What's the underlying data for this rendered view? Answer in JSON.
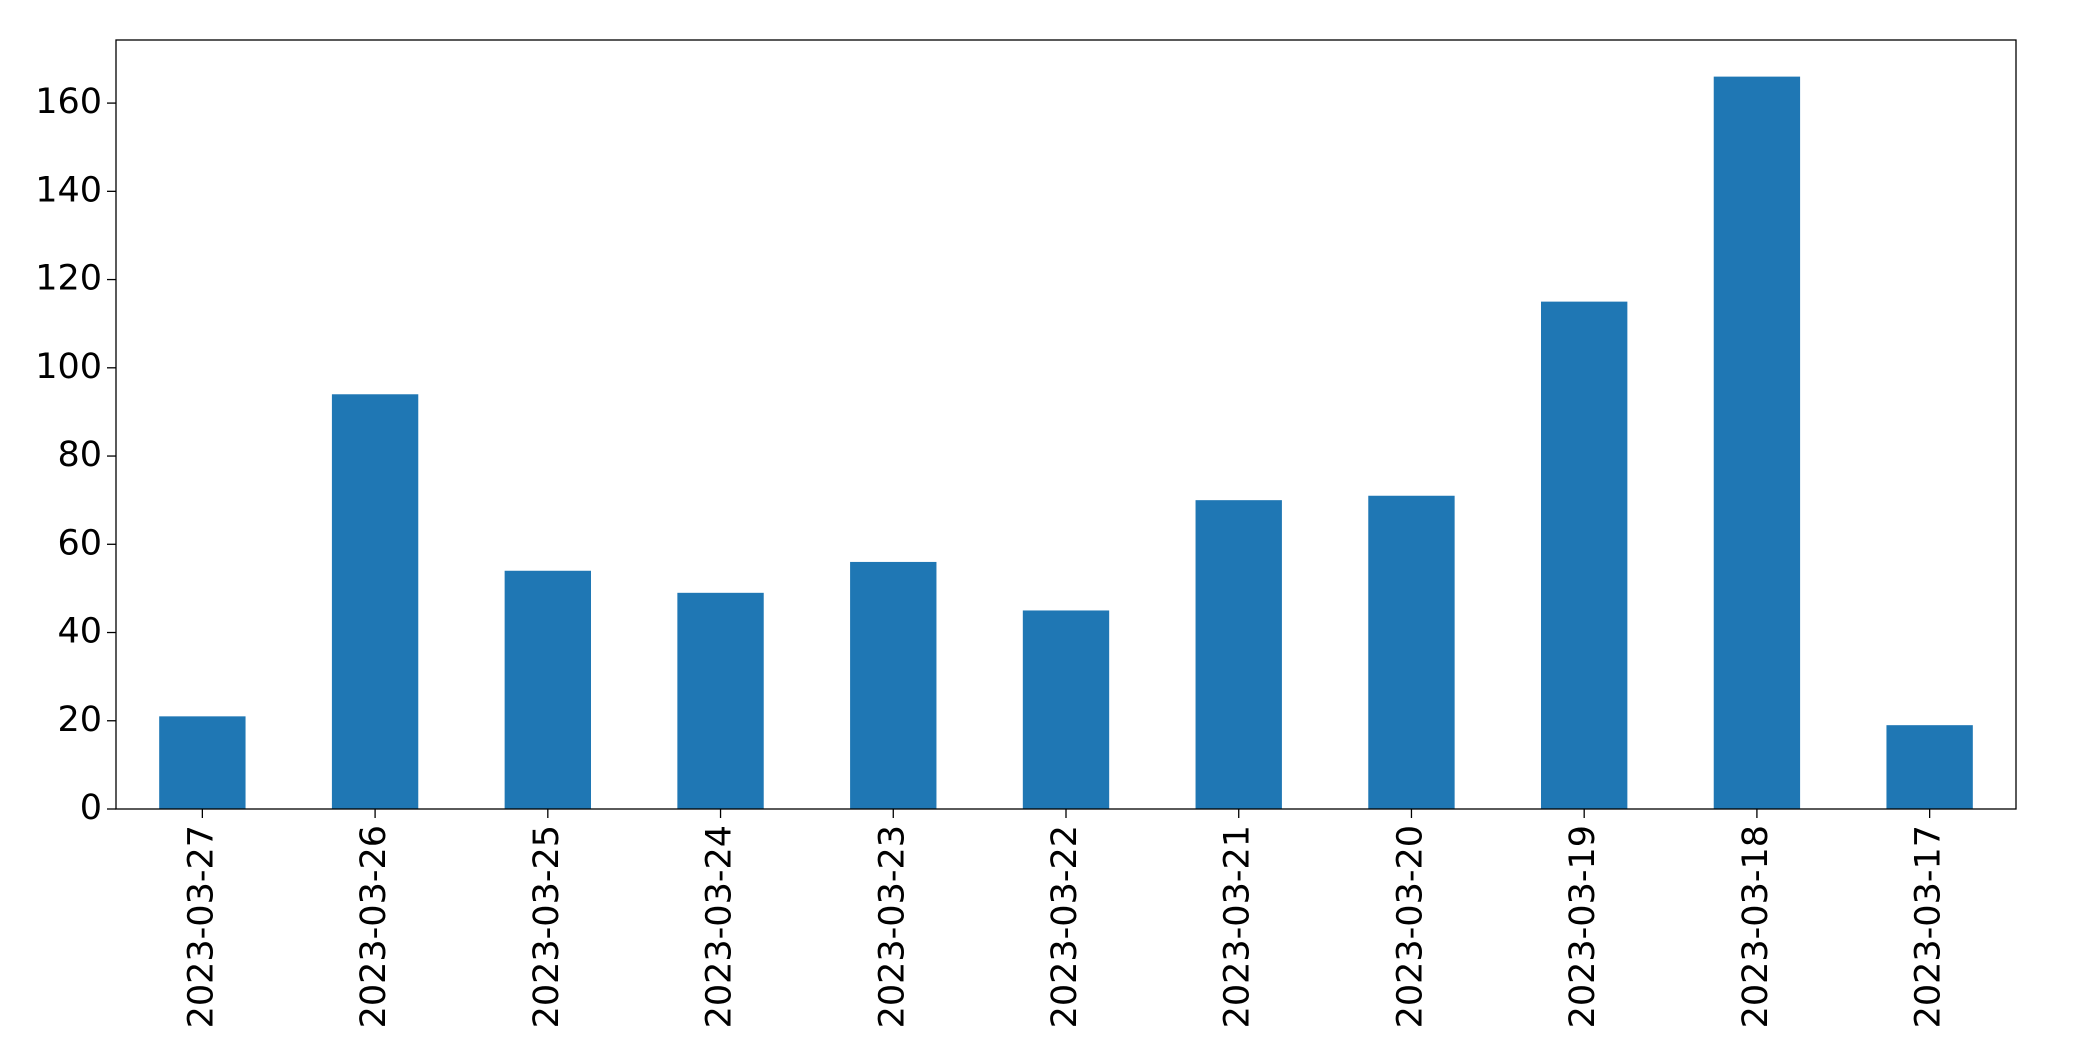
{
  "chart_data": {
    "type": "bar",
    "categories": [
      "2023-03-27",
      "2023-03-26",
      "2023-03-25",
      "2023-03-24",
      "2023-03-23",
      "2023-03-22",
      "2023-03-21",
      "2023-03-20",
      "2023-03-19",
      "2023-03-18",
      "2023-03-17"
    ],
    "values": [
      21,
      94,
      54,
      49,
      56,
      45,
      70,
      71,
      115,
      166,
      19
    ],
    "color": "#1f77b4",
    "ylim": [
      0,
      174.3
    ],
    "yticks": [
      0,
      20,
      40,
      60,
      80,
      100,
      120,
      140,
      160
    ],
    "grid": false
  }
}
